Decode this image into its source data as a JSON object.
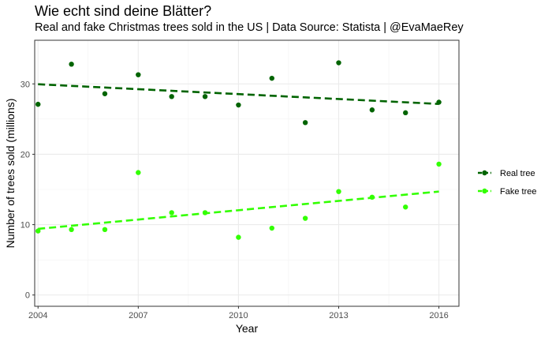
{
  "chart_data": {
    "type": "scatter",
    "title": "Wie echt sind deine Blätter?",
    "subtitle": "Real and fake Christmas trees sold in the US | Data Source: Statista | @EvaMaeRey",
    "xlabel": "Year",
    "ylabel": "Number of trees sold (millions)",
    "xlim": [
      2003.9,
      2016.6
    ],
    "ylim": [
      -1.6,
      36.2
    ],
    "x_ticks": [
      2004,
      2007,
      2010,
      2013,
      2016
    ],
    "y_ticks": [
      0,
      10,
      20,
      30
    ],
    "grid": true,
    "legend_position": "right",
    "x": [
      2004,
      2005,
      2006,
      2007,
      2008,
      2009,
      2010,
      2011,
      2012,
      2013,
      2014,
      2015,
      2016
    ],
    "series": [
      {
        "name": "Real tree",
        "color": "#006400",
        "values": [
          27.1,
          32.8,
          28.6,
          31.3,
          28.2,
          28.2,
          27.0,
          30.8,
          24.5,
          33.0,
          26.3,
          25.9,
          27.4
        ],
        "trend": [
          29.95,
          27.15
        ]
      },
      {
        "name": "Fake tree",
        "color": "#32ff00",
        "values": [
          9.1,
          9.3,
          9.3,
          17.4,
          11.7,
          11.7,
          8.2,
          9.5,
          10.9,
          14.7,
          13.9,
          12.5,
          18.6
        ],
        "trend": [
          9.4,
          14.7
        ]
      }
    ]
  }
}
